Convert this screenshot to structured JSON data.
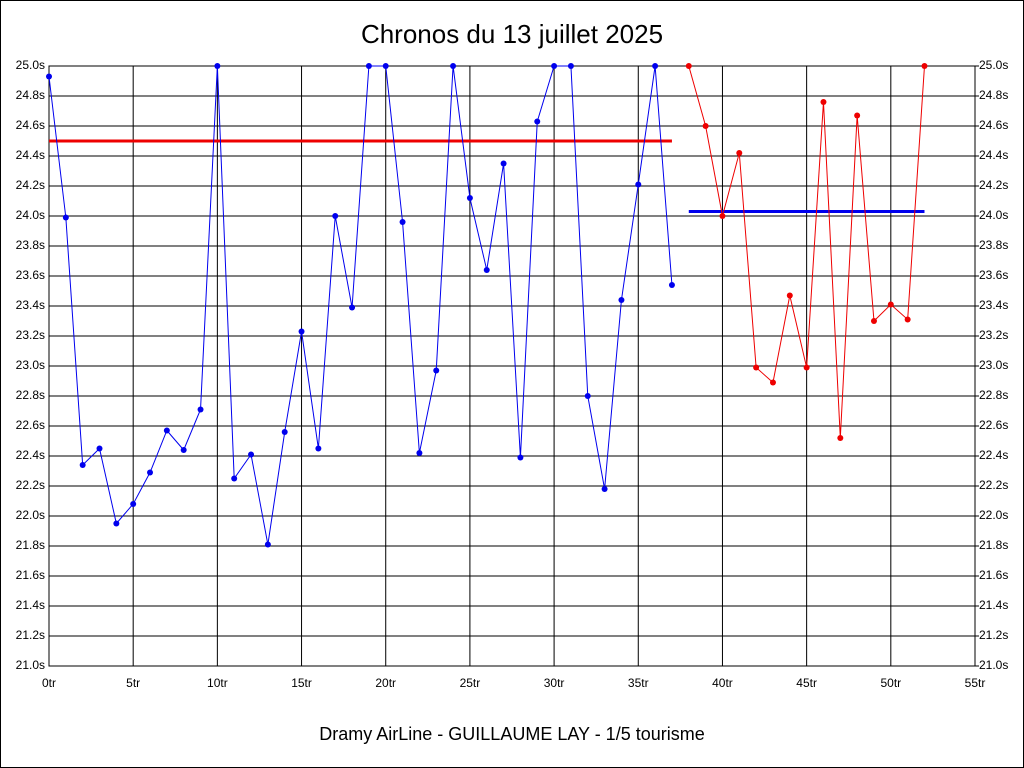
{
  "chart_data": {
    "type": "line",
    "title": "Chronos du 13 juillet 2025",
    "caption": "Dramy AirLine - GUILLAUME LAY - 1/5 tourisme",
    "xlim": [
      0,
      55
    ],
    "xticks": [
      {
        "value": 0,
        "label": "0tr"
      },
      {
        "value": 5,
        "label": "5tr"
      },
      {
        "value": 10,
        "label": "10tr"
      },
      {
        "value": 15,
        "label": "15tr"
      },
      {
        "value": 20,
        "label": "20tr"
      },
      {
        "value": 25,
        "label": "25tr"
      },
      {
        "value": 30,
        "label": "30tr"
      },
      {
        "value": 35,
        "label": "35tr"
      },
      {
        "value": 40,
        "label": "40tr"
      },
      {
        "value": 45,
        "label": "45tr"
      },
      {
        "value": 50,
        "label": "50tr"
      },
      {
        "value": 55,
        "label": "55tr"
      }
    ],
    "ylim": [
      21,
      25
    ],
    "yticks": [
      {
        "value": 21,
        "label": "21.0s"
      },
      {
        "value": 21.2,
        "label": "21.2s"
      },
      {
        "value": 21.4,
        "label": "21.4s"
      },
      {
        "value": 21.6,
        "label": "21.6s"
      },
      {
        "value": 21.8,
        "label": "21.8s"
      },
      {
        "value": 22,
        "label": "22.0s"
      },
      {
        "value": 22.2,
        "label": "22.2s"
      },
      {
        "value": 22.4,
        "label": "22.4s"
      },
      {
        "value": 22.6,
        "label": "22.6s"
      },
      {
        "value": 22.8,
        "label": "22.8s"
      },
      {
        "value": 23,
        "label": "23.0s"
      },
      {
        "value": 23.2,
        "label": "23.2s"
      },
      {
        "value": 23.4,
        "label": "23.4s"
      },
      {
        "value": 23.6,
        "label": "23.6s"
      },
      {
        "value": 23.8,
        "label": "23.8s"
      },
      {
        "value": 24,
        "label": "24.0s"
      },
      {
        "value": 24.2,
        "label": "24.2s"
      },
      {
        "value": 24.4,
        "label": "24.4s"
      },
      {
        "value": 24.6,
        "label": "24.6s"
      },
      {
        "value": 24.8,
        "label": "24.8s"
      },
      {
        "value": 25,
        "label": "25.0s"
      }
    ],
    "y2lim": [
      21,
      25
    ],
    "y2ticks": [
      {
        "value": 21,
        "label": "21.0s"
      },
      {
        "value": 21.2,
        "label": "21.2s"
      },
      {
        "value": 21.4,
        "label": "21.4s"
      },
      {
        "value": 21.6,
        "label": "21.6s"
      },
      {
        "value": 21.8,
        "label": "21.8s"
      },
      {
        "value": 22,
        "label": "22.0s"
      },
      {
        "value": 22.2,
        "label": "22.2s"
      },
      {
        "value": 22.4,
        "label": "22.4s"
      },
      {
        "value": 22.6,
        "label": "22.6s"
      },
      {
        "value": 22.8,
        "label": "22.8s"
      },
      {
        "value": 23,
        "label": "23.0s"
      },
      {
        "value": 23.2,
        "label": "23.2s"
      },
      {
        "value": 23.4,
        "label": "23.4s"
      },
      {
        "value": 23.6,
        "label": "23.6s"
      },
      {
        "value": 23.8,
        "label": "23.8s"
      },
      {
        "value": 24,
        "label": "24.0s"
      },
      {
        "value": 24.2,
        "label": "24.2s"
      },
      {
        "value": 24.4,
        "label": "24.4s"
      },
      {
        "value": 24.6,
        "label": "24.6s"
      },
      {
        "value": 24.8,
        "label": "24.8s"
      },
      {
        "value": 25,
        "label": "25.0s"
      }
    ],
    "grid": true,
    "series": [
      {
        "color": "#0000ee",
        "x": [
          0,
          1,
          2,
          3,
          4,
          5,
          6,
          7,
          8,
          9,
          10,
          11,
          12,
          13,
          14,
          15,
          16,
          17,
          18,
          19,
          20,
          21,
          22,
          23,
          24,
          25,
          26,
          27,
          28,
          29,
          30,
          31,
          32,
          33,
          34,
          35,
          36,
          37
        ],
        "values": [
          24.93,
          23.99,
          22.34,
          22.45,
          21.95,
          22.08,
          22.29,
          22.57,
          22.44,
          22.71,
          25.0,
          22.25,
          22.41,
          21.81,
          22.56,
          23.23,
          22.45,
          24.0,
          23.39,
          25.0,
          25.0,
          23.96,
          22.42,
          22.97,
          25.0,
          24.12,
          23.64,
          24.35,
          22.39,
          24.63,
          25.0,
          25.0,
          22.8,
          22.18,
          23.44,
          24.21,
          25.0,
          23.54
        ]
      },
      {
        "color": "#ee0000",
        "x": [
          38,
          39,
          40,
          41,
          42,
          43,
          44,
          45,
          46,
          47,
          48,
          49,
          50,
          51,
          52
        ],
        "values": [
          25.0,
          24.6,
          24.0,
          24.42,
          22.99,
          22.89,
          23.47,
          22.99,
          24.76,
          22.52,
          24.67,
          23.3,
          23.41,
          23.31,
          25.0
        ]
      }
    ],
    "hlines": [
      {
        "y": 24.5,
        "from": 0,
        "to": 37,
        "color": "#ee0000"
      },
      {
        "y": 24.03,
        "from": 38,
        "to": 52,
        "color": "#0000ee"
      }
    ]
  }
}
